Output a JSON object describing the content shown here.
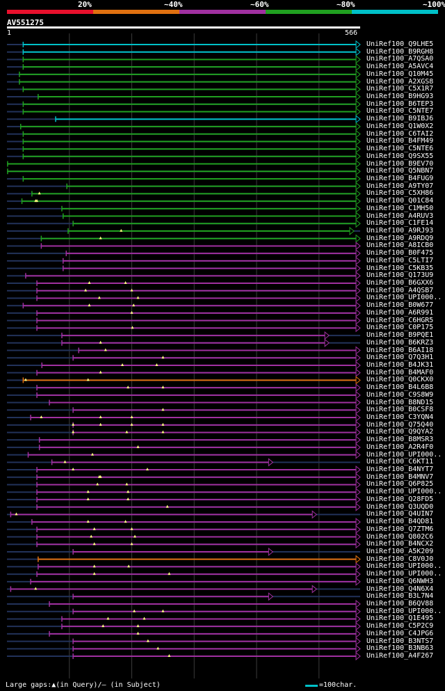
{
  "legend": [
    {
      "label": "20%",
      "color": "#e8102c"
    },
    {
      "label": "~40%",
      "color": "#e07010"
    },
    {
      "label": "~60%",
      "color": "#a030a0"
    },
    {
      "label": "~80%",
      "color": "#20a020"
    },
    {
      "label": "~100%",
      "color": "#00c0c8"
    }
  ],
  "query": {
    "name": "AV551275",
    "start": "1",
    "end": "566",
    "length": 566
  },
  "colors": {
    "dark": "#22325a",
    "cyan": "#00c0c8",
    "green": "#20a020",
    "purple": "#a030a0",
    "orange": "#e07010",
    "gap": "#ffff80"
  },
  "hits": [
    {
      "name": "UniRef100_Q9LHE5",
      "color": "cyan",
      "start": 26,
      "end": 566,
      "arrow": true,
      "gaps": []
    },
    {
      "name": "UniRef100_B9RGH8",
      "color": "cyan",
      "start": 26,
      "end": 566,
      "arrow": true,
      "gaps": []
    },
    {
      "name": "UniRef100_A7QSA0",
      "color": "green",
      "start": 26,
      "end": 566,
      "arrow": true,
      "gaps": []
    },
    {
      "name": "UniRef100_A5AVC4",
      "color": "green",
      "start": 26,
      "end": 566,
      "arrow": true,
      "gaps": []
    },
    {
      "name": "UniRef100_Q10M45",
      "color": "green",
      "start": 20,
      "end": 566,
      "arrow": true,
      "gaps": []
    },
    {
      "name": "UniRef100_A2XGS8",
      "color": "green",
      "start": 20,
      "end": 566,
      "arrow": true,
      "gaps": []
    },
    {
      "name": "UniRef100_C5X1R7",
      "color": "green",
      "start": 26,
      "end": 566,
      "arrow": true,
      "gaps": []
    },
    {
      "name": "UniRef100_B9HG93",
      "color": "green",
      "start": 50,
      "end": 566,
      "arrow": true,
      "gaps": []
    },
    {
      "name": "UniRef100_B6TEP3",
      "color": "green",
      "start": 26,
      "end": 566,
      "arrow": true,
      "gaps": []
    },
    {
      "name": "UniRef100_C5NTE7",
      "color": "green",
      "start": 26,
      "end": 566,
      "arrow": true,
      "gaps": []
    },
    {
      "name": "UniRef100_B9IBJ6",
      "color": "cyan",
      "start": 78,
      "end": 566,
      "arrow": true,
      "gaps": []
    },
    {
      "name": "UniRef100_Q1W0X2",
      "color": "green",
      "start": 22,
      "end": 566,
      "arrow": true,
      "gaps": []
    },
    {
      "name": "UniRef100_C6TAI2",
      "color": "green",
      "start": 26,
      "end": 566,
      "arrow": true,
      "gaps": []
    },
    {
      "name": "UniRef100_B4FM49",
      "color": "green",
      "start": 26,
      "end": 566,
      "arrow": true,
      "gaps": []
    },
    {
      "name": "UniRef100_C5NTE6",
      "color": "green",
      "start": 26,
      "end": 566,
      "arrow": true,
      "gaps": []
    },
    {
      "name": "UniRef100_Q9SX55",
      "color": "green",
      "start": 26,
      "end": 566,
      "arrow": true,
      "gaps": []
    },
    {
      "name": "UniRef100_B9EV70",
      "color": "green",
      "start": 1,
      "end": 566,
      "arrow": true,
      "gaps": []
    },
    {
      "name": "UniRef100_Q5NBN7",
      "color": "green",
      "start": 1,
      "end": 566,
      "arrow": true,
      "gaps": []
    },
    {
      "name": "UniRef100_B4FUG9",
      "color": "green",
      "start": 26,
      "end": 566,
      "arrow": true,
      "gaps": []
    },
    {
      "name": "UniRef100_A9TY07",
      "color": "green",
      "start": 96,
      "end": 566,
      "arrow": true,
      "gaps": []
    },
    {
      "name": "UniRef100_C5XH86",
      "color": "green",
      "start": 40,
      "end": 566,
      "arrow": true,
      "gaps": [
        52
      ]
    },
    {
      "name": "UniRef100_Q01C84",
      "color": "green",
      "start": 24,
      "end": 566,
      "arrow": true,
      "gaps": [
        46,
        48
      ]
    },
    {
      "name": "UniRef100_C1MH50",
      "color": "green",
      "start": 88,
      "end": 566,
      "arrow": true,
      "gaps": []
    },
    {
      "name": "UniRef100_A4RUV3",
      "color": "green",
      "start": 90,
      "end": 566,
      "arrow": true,
      "gaps": []
    },
    {
      "name": "UniRef100_C1FE14",
      "color": "green",
      "start": 106,
      "end": 566,
      "arrow": true,
      "gaps": []
    },
    {
      "name": "UniRef100_A9RJ93",
      "color": "green",
      "start": 98,
      "end": 556,
      "arrow": true,
      "gaps": [
        183
      ]
    },
    {
      "name": "UniRef100_A9RDQ9",
      "color": "green",
      "start": 55,
      "end": 566,
      "arrow": true,
      "gaps": [
        150
      ]
    },
    {
      "name": "UniRef100_A8ICB0",
      "color": "purple",
      "start": 55,
      "end": 566,
      "arrow": true,
      "gaps": []
    },
    {
      "name": "UniRef100_B0F475",
      "color": "purple",
      "start": 95,
      "end": 566,
      "arrow": true,
      "gaps": []
    },
    {
      "name": "UniRef100_C5LTI7",
      "color": "purple",
      "start": 90,
      "end": 566,
      "arrow": true,
      "gaps": []
    },
    {
      "name": "UniRef100_C5KB35",
      "color": "purple",
      "start": 90,
      "end": 566,
      "arrow": true,
      "gaps": []
    },
    {
      "name": "UniRef100_Q173U9",
      "color": "purple",
      "start": 30,
      "end": 566,
      "arrow": true,
      "gaps": []
    },
    {
      "name": "UniRef100_B6GXX6",
      "color": "purple",
      "start": 48,
      "end": 566,
      "arrow": true,
      "gaps": [
        132,
        190
      ]
    },
    {
      "name": "UniRef100_A4QSB7",
      "color": "purple",
      "start": 48,
      "end": 566,
      "arrow": true,
      "gaps": [
        126,
        200
      ]
    },
    {
      "name": "UniRef100_UPI000..",
      "color": "purple",
      "start": 48,
      "end": 566,
      "arrow": true,
      "gaps": [
        148,
        210
      ]
    },
    {
      "name": "UniRef100_B0W677",
      "color": "purple",
      "start": 26,
      "end": 566,
      "arrow": true,
      "gaps": [
        132,
        203
      ]
    },
    {
      "name": "UniRef100_A6R991",
      "color": "purple",
      "start": 48,
      "end": 566,
      "arrow": true,
      "gaps": [
        200
      ]
    },
    {
      "name": "UniRef100_C6HGR5",
      "color": "purple",
      "start": 48,
      "end": 566,
      "arrow": true,
      "gaps": []
    },
    {
      "name": "UniRef100_C0P175",
      "color": "purple",
      "start": 48,
      "end": 566,
      "arrow": true,
      "gaps": [
        201
      ]
    },
    {
      "name": "UniRef100_B9PQE1",
      "color": "purple",
      "start": 88,
      "end": 516,
      "arrow": true,
      "gaps": []
    },
    {
      "name": "UniRef100_B6KRZ3",
      "color": "purple",
      "start": 88,
      "end": 516,
      "arrow": true,
      "gaps": [
        150
      ]
    },
    {
      "name": "UniRef100_B6AI18",
      "color": "purple",
      "start": 115,
      "end": 566,
      "arrow": true,
      "gaps": [
        158
      ]
    },
    {
      "name": "UniRef100_Q7Q3H1",
      "color": "purple",
      "start": 106,
      "end": 566,
      "arrow": true,
      "gaps": [
        250
      ]
    },
    {
      "name": "UniRef100_B4JK31",
      "color": "purple",
      "start": 56,
      "end": 566,
      "arrow": true,
      "gaps": [
        185,
        240
      ]
    },
    {
      "name": "UniRef100_B4MAF0",
      "color": "purple",
      "start": 48,
      "end": 566,
      "arrow": true,
      "gaps": [
        150
      ]
    },
    {
      "name": "UniRef100_Q0CKX0",
      "color": "orange",
      "start": 26,
      "end": 566,
      "arrow": true,
      "gaps": [
        30,
        130
      ]
    },
    {
      "name": "UniRef100_B4L6B8",
      "color": "purple",
      "start": 48,
      "end": 566,
      "arrow": true,
      "gaps": [
        194,
        250
      ]
    },
    {
      "name": "UniRef100_C9S8W9",
      "color": "purple",
      "start": 48,
      "end": 566,
      "arrow": true,
      "gaps": []
    },
    {
      "name": "UniRef100_B8ND15",
      "color": "purple",
      "start": 68,
      "end": 566,
      "arrow": true,
      "gaps": []
    },
    {
      "name": "UniRef100_B0CSF8",
      "color": "purple",
      "start": 106,
      "end": 566,
      "arrow": true,
      "gaps": [
        250
      ]
    },
    {
      "name": "UniRef100_C3YQN4",
      "color": "purple",
      "start": 38,
      "end": 566,
      "arrow": true,
      "gaps": [
        55,
        150,
        200
      ]
    },
    {
      "name": "UniRef100_Q75Q40",
      "color": "purple",
      "start": 106,
      "end": 566,
      "arrow": true,
      "gaps": [
        106,
        150,
        200,
        250
      ]
    },
    {
      "name": "UniRef100_Q9QYA2",
      "color": "purple",
      "start": 106,
      "end": 566,
      "arrow": true,
      "gaps": [
        106,
        192,
        250
      ]
    },
    {
      "name": "UniRef100_B8MSR3",
      "color": "purple",
      "start": 52,
      "end": 566,
      "arrow": true,
      "gaps": []
    },
    {
      "name": "UniRef100_A2R4F0",
      "color": "purple",
      "start": 52,
      "end": 566,
      "arrow": true,
      "gaps": [
        210
      ]
    },
    {
      "name": "UniRef100_UPI000..",
      "color": "purple",
      "start": 34,
      "end": 566,
      "arrow": true,
      "gaps": [
        137
      ]
    },
    {
      "name": "UniRef100_C6KT11",
      "color": "purple",
      "start": 72,
      "end": 426,
      "arrow": true,
      "gaps": [
        93
      ]
    },
    {
      "name": "UniRef100_B4NYT7",
      "color": "purple",
      "start": 48,
      "end": 566,
      "arrow": true,
      "gaps": [
        106,
        225
      ]
    },
    {
      "name": "UniRef100_B4MNV7",
      "color": "purple",
      "start": 48,
      "end": 566,
      "arrow": true,
      "gaps": [
        148,
        150
      ]
    },
    {
      "name": "UniRef100_Q6P825",
      "color": "purple",
      "start": 48,
      "end": 566,
      "arrow": true,
      "gaps": [
        145,
        192
      ]
    },
    {
      "name": "UniRef100_UPI000..",
      "color": "purple",
      "start": 48,
      "end": 566,
      "arrow": true,
      "gaps": [
        130,
        194
      ]
    },
    {
      "name": "UniRef100_Q28FD5",
      "color": "purple",
      "start": 48,
      "end": 566,
      "arrow": true,
      "gaps": [
        130,
        194
      ]
    },
    {
      "name": "UniRef100_Q3UQD0",
      "color": "purple",
      "start": 48,
      "end": 566,
      "arrow": true,
      "gaps": [
        257
      ]
    },
    {
      "name": "UniRef100_Q4UIN7",
      "color": "purple",
      "start": 6,
      "end": 496,
      "arrow": true,
      "gaps": [
        15
      ]
    },
    {
      "name": "UniRef100_B4QD81",
      "color": "purple",
      "start": 40,
      "end": 566,
      "arrow": true,
      "gaps": [
        130,
        190
      ]
    },
    {
      "name": "UniRef100_Q7ZTM6",
      "color": "purple",
      "start": 48,
      "end": 566,
      "arrow": true,
      "gaps": [
        140,
        200
      ]
    },
    {
      "name": "UniRef100_Q802C6",
      "color": "purple",
      "start": 48,
      "end": 566,
      "arrow": true,
      "gaps": [
        135,
        205
      ]
    },
    {
      "name": "UniRef100_B4NCX2",
      "color": "purple",
      "start": 48,
      "end": 566,
      "arrow": true,
      "gaps": [
        140,
        200
      ]
    },
    {
      "name": "UniRef100_A5K209",
      "color": "purple",
      "start": 106,
      "end": 426,
      "arrow": true,
      "gaps": []
    },
    {
      "name": "UniRef100_C8V0J0",
      "color": "orange",
      "start": 50,
      "end": 566,
      "arrow": true,
      "gaps": []
    },
    {
      "name": "UniRef100_UPI000..",
      "color": "purple",
      "start": 50,
      "end": 566,
      "arrow": true,
      "gaps": [
        140,
        195
      ]
    },
    {
      "name": "UniRef100_UPI000..",
      "color": "purple",
      "start": 48,
      "end": 566,
      "arrow": true,
      "gaps": [
        140,
        260
      ]
    },
    {
      "name": "UniRef100_Q6NWH3",
      "color": "purple",
      "start": 38,
      "end": 566,
      "arrow": true,
      "gaps": []
    },
    {
      "name": "UniRef100_Q4N6X4",
      "color": "purple",
      "start": 6,
      "end": 496,
      "arrow": true,
      "gaps": [
        46
      ]
    },
    {
      "name": "UniRef100_B3L7N4",
      "color": "purple",
      "start": 106,
      "end": 426,
      "arrow": true,
      "gaps": []
    },
    {
      "name": "UniRef100_B6QV88",
      "color": "purple",
      "start": 68,
      "end": 566,
      "arrow": true,
      "gaps": []
    },
    {
      "name": "UniRef100_UPI000..",
      "color": "purple",
      "start": 106,
      "end": 566,
      "arrow": true,
      "gaps": [
        204,
        250
      ]
    },
    {
      "name": "UniRef100_Q1E495",
      "color": "purple",
      "start": 88,
      "end": 566,
      "arrow": true,
      "gaps": [
        162,
        220
      ]
    },
    {
      "name": "UniRef100_C5P2C9",
      "color": "purple",
      "start": 88,
      "end": 566,
      "arrow": true,
      "gaps": [
        154,
        210
      ]
    },
    {
      "name": "UniRef100_C4JPG6",
      "color": "purple",
      "start": 68,
      "end": 566,
      "arrow": true,
      "gaps": [
        210
      ]
    },
    {
      "name": "UniRef100_B3NTS7",
      "color": "purple",
      "start": 106,
      "end": 566,
      "arrow": true,
      "gaps": [
        226
      ]
    },
    {
      "name": "UniRef100_B3NB63",
      "color": "purple",
      "start": 106,
      "end": 566,
      "arrow": true,
      "gaps": [
        242
      ]
    },
    {
      "name": "UniRef100_A4F267",
      "color": "purple",
      "start": 106,
      "end": 566,
      "arrow": true,
      "gaps": [
        260
      ]
    }
  ],
  "footer": {
    "gaps_text": "Large gaps:▲(in Query)/— (in Subject)",
    "scale_text": "=100char."
  }
}
